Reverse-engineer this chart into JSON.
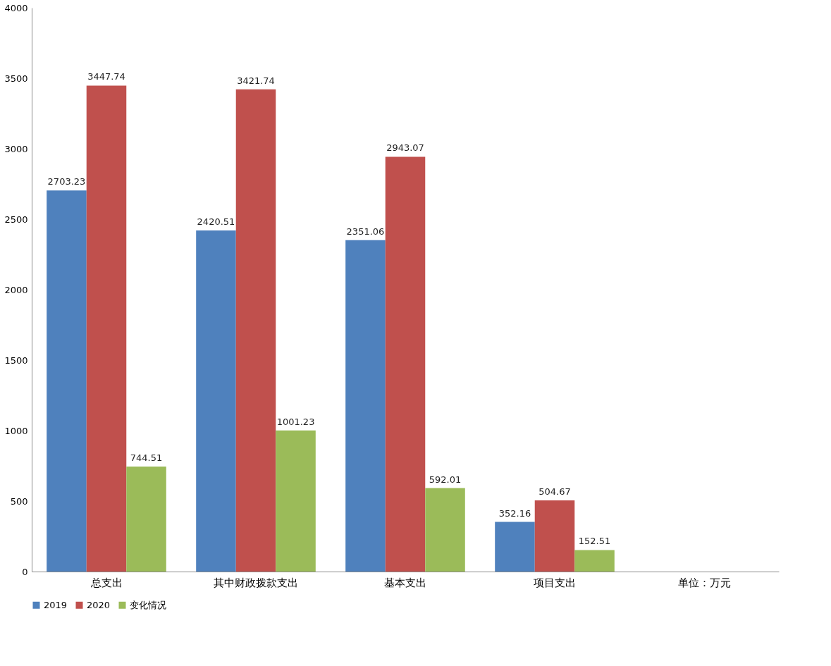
{
  "chart_data": {
    "type": "bar",
    "categories": [
      "总支出",
      "其中财政拨款支出",
      "基本支出",
      "项目支出",
      "单位：万元"
    ],
    "series": [
      {
        "name": "2019",
        "color": "#4f81bd",
        "values": [
          2703.23,
          2420.51,
          2351.06,
          352.16,
          null
        ]
      },
      {
        "name": "2020",
        "color": "#c0504d",
        "values": [
          3447.74,
          3421.74,
          2943.07,
          504.67,
          null
        ]
      },
      {
        "name": "变化情况",
        "color": "#9bbb59",
        "values": [
          744.51,
          1001.23,
          592.01,
          152.51,
          null
        ]
      }
    ],
    "ylim": [
      0,
      4000
    ],
    "yticks": [
      0,
      500,
      1000,
      1500,
      2000,
      2500,
      3000,
      3500,
      4000
    ],
    "grid": false,
    "legend": "bottom",
    "data_labels": true
  }
}
